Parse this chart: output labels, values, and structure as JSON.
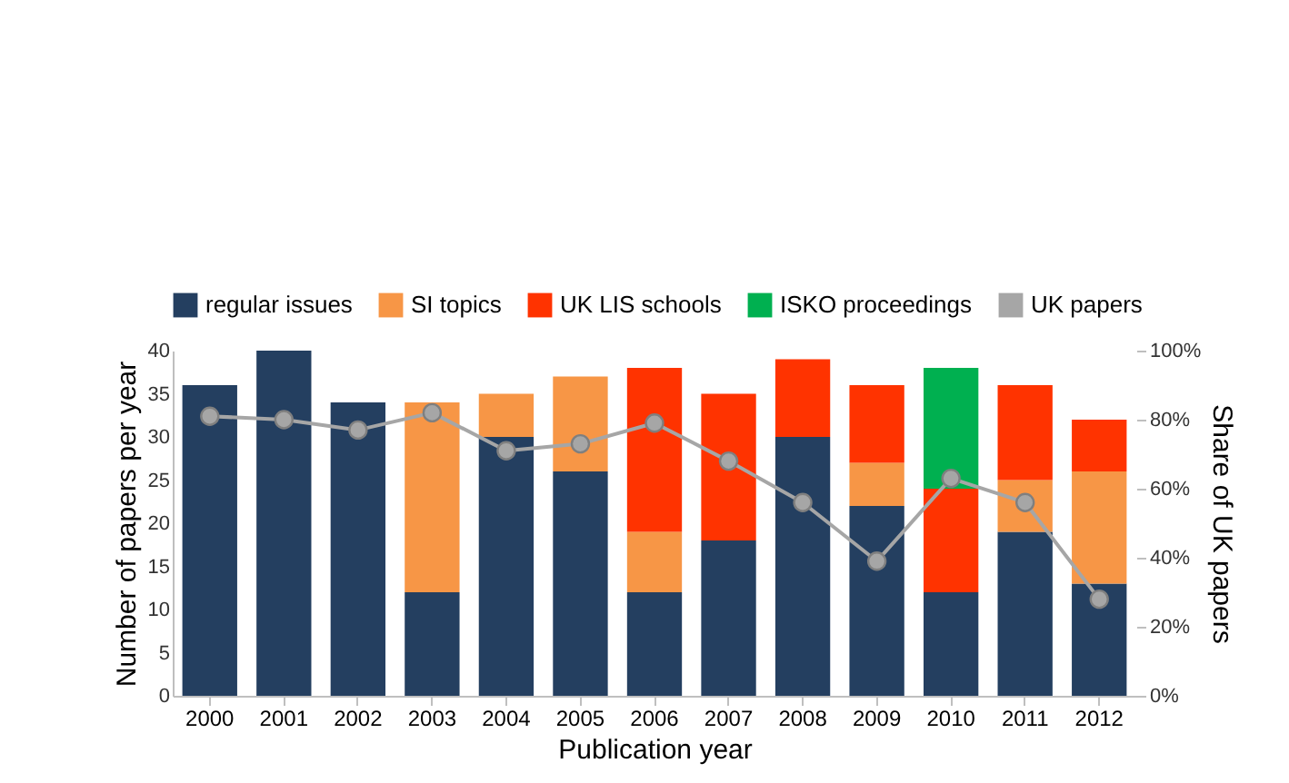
{
  "chart_data": {
    "type": "bar",
    "stacked": true,
    "xlabel": "Publication year",
    "ylabel": "Number of papers per year",
    "y2label": "Share of UK papers",
    "categories": [
      "2000",
      "2001",
      "2002",
      "2003",
      "2004",
      "2005",
      "2006",
      "2007",
      "2008",
      "2009",
      "2010",
      "2011",
      "2012"
    ],
    "series": [
      {
        "name": "regular issues",
        "color": "#243f60",
        "values": [
          36,
          40,
          34,
          12,
          30,
          26,
          12,
          18,
          30,
          22,
          12,
          19,
          13
        ]
      },
      {
        "name": "SI topics",
        "color": "#f79646",
        "values": [
          null,
          null,
          null,
          22,
          5,
          11,
          7,
          null,
          null,
          5,
          null,
          6,
          13
        ]
      },
      {
        "name": "UK LIS schools",
        "color": "#ff3300",
        "values": [
          null,
          null,
          null,
          null,
          null,
          null,
          19,
          17,
          9,
          9,
          12,
          11,
          6
        ]
      },
      {
        "name": "ISKO proceedings",
        "color": "#00b050",
        "values": [
          null,
          null,
          null,
          null,
          null,
          null,
          null,
          null,
          null,
          null,
          14,
          null,
          null
        ]
      },
      {
        "name": "UK papers",
        "type": "line",
        "axis": "y2",
        "color": "#a6a6a6",
        "marker": "circle",
        "values": [
          81,
          80,
          77,
          82,
          71,
          73,
          79,
          68,
          56,
          39,
          63,
          56,
          28
        ]
      }
    ],
    "ylim": [
      0,
      40
    ],
    "yticks": [
      0,
      5,
      10,
      15,
      20,
      25,
      30,
      35,
      40
    ],
    "y2lim": [
      0,
      100
    ],
    "y2ticks": [
      {
        "value": 0,
        "label": "0%"
      },
      {
        "value": 20,
        "label": "20%"
      },
      {
        "value": 40,
        "label": "40%"
      },
      {
        "value": 60,
        "label": "60%"
      },
      {
        "value": 80,
        "label": "80%"
      },
      {
        "value": 100,
        "label": "100%"
      }
    ],
    "grid": false,
    "legend": "top"
  }
}
